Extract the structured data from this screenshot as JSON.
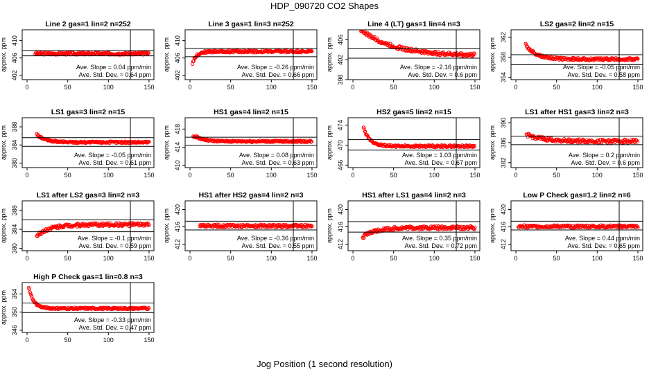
{
  "figure": {
    "title": "HDP_090720  CO2 Shapes",
    "xlabel": "Jog Position (1 second resolution)"
  },
  "colors": {
    "points": "#ff0000",
    "axes": "#000000"
  },
  "chart_data": [
    {
      "type": "scatter",
      "title": "Line 2 gas=1 lin=2 n=252",
      "ylabel": "approx. ppm",
      "xticks": [
        0,
        50,
        100,
        150
      ],
      "yticks": [
        402,
        406,
        410
      ],
      "ylim": [
        401,
        412.5
      ],
      "xlim": [
        -6,
        156
      ],
      "hlines": [
        407.7,
        406.5
      ],
      "vline": 127,
      "slope_text": "Ave. Slope =  0.04  ppm/min",
      "std_text": "Ave. Std. Dev. =  0.64  ppm",
      "series": [
        {
          "shape": "flat",
          "x_start": 10,
          "x_end": 150,
          "level": 407.0,
          "noise": 0.25
        }
      ]
    },
    {
      "type": "scatter",
      "title": "Line 3 gas=1 lin=3 n=252",
      "ylabel": "approx. ppm",
      "xticks": [
        0,
        50,
        100,
        150
      ],
      "yticks": [
        402,
        406,
        410
      ],
      "ylim": [
        401,
        412.5
      ],
      "xlim": [
        -6,
        156
      ],
      "hlines": [
        408.2,
        406.3
      ],
      "vline": 127,
      "slope_text": "Ave. Slope = -0.26  ppm/min",
      "std_text": "Ave. Std. Dev. =  0.66  ppm",
      "series": [
        {
          "shape": "rise",
          "x_start": 3,
          "x_end": 150,
          "level": 407.5,
          "start": 404.8,
          "tau": 5,
          "noise": 0.25
        }
      ]
    },
    {
      "type": "scatter",
      "title": "Line 4 (LT) gas=1 lin=4 n=3",
      "ylabel": "approx. ppm",
      "xticks": [
        0,
        50,
        100,
        150
      ],
      "yticks": [
        398,
        402,
        406
      ],
      "ylim": [
        398,
        408
      ],
      "xlim": [
        -6,
        156
      ],
      "hlines": [
        404.2,
        402.3
      ],
      "vline": 127,
      "slope_text": "Ave. Slope = -2.16  ppm/min",
      "std_text": "Ave. Std. Dev. =  0.6  ppm",
      "series": [
        {
          "shape": "decay",
          "x_start": 10,
          "x_end": 150,
          "level": 402.8,
          "start": 408,
          "tau": 40,
          "noise": 0.35
        }
      ]
    },
    {
      "type": "scatter",
      "title": "LS2 gas=2 lin=2 n=15",
      "ylabel": "approx. ppm",
      "xticks": [
        0,
        50,
        100,
        150
      ],
      "yticks": [
        354,
        358,
        362
      ],
      "ylim": [
        353.5,
        363.5
      ],
      "xlim": [
        -6,
        156
      ],
      "hlines": [
        358.5,
        356.5
      ],
      "vline": 127,
      "slope_text": "Ave. Slope = -0.05  ppm/min",
      "std_text": "Ave. Std. Dev. =  0.58  ppm",
      "series": [
        {
          "shape": "decay",
          "x_start": 12,
          "x_end": 150,
          "level": 357.6,
          "start": 360.5,
          "tau": 13,
          "noise": 0.25
        }
      ]
    },
    {
      "type": "scatter",
      "title": "LS1 gas=3 lin=2 n=15",
      "ylabel": "approx. ppm",
      "xticks": [
        0,
        50,
        100,
        150
      ],
      "yticks": [
        380,
        384,
        388
      ],
      "ylim": [
        379,
        390
      ],
      "xlim": [
        -6,
        156
      ],
      "hlines": [
        385.6,
        383.7
      ],
      "vline": 127,
      "slope_text": "Ave. Slope = -0.05  ppm/min",
      "std_text": "Ave. Std. Dev. =  0.61  ppm",
      "series": [
        {
          "shape": "decay",
          "x_start": 12,
          "x_end": 150,
          "level": 384.6,
          "start": 386.3,
          "tau": 10,
          "noise": 0.2
        }
      ]
    },
    {
      "type": "scatter",
      "title": "HS1 gas=4 lin=2 n=15",
      "ylabel": "approx. ppm",
      "xticks": [
        0,
        50,
        100,
        150
      ],
      "yticks": [
        410,
        414,
        418
      ],
      "ylim": [
        409.5,
        420.5
      ],
      "xlim": [
        -6,
        156
      ],
      "hlines": [
        416.2,
        414.4
      ],
      "vline": 127,
      "slope_text": "Ave. Slope =  0.08  ppm/min",
      "std_text": "Ave. Std. Dev. =  0.63  ppm",
      "series": [
        {
          "shape": "bump",
          "x_start": 4,
          "x_end": 150,
          "level": 415.3,
          "start": 416.3,
          "tau": 10,
          "noise": 0.2
        }
      ]
    },
    {
      "type": "scatter",
      "title": "HS2 gas=5 lin=2 n=15",
      "ylabel": "approx. ppm",
      "xticks": [
        0,
        50,
        100,
        150
      ],
      "yticks": [
        466,
        470,
        474
      ],
      "ylim": [
        465.5,
        475.5
      ],
      "xlim": [
        -6,
        156
      ],
      "hlines": [
        471.1,
        469.0
      ],
      "vline": 127,
      "slope_text": "Ave. Slope =  1.03  ppm/min",
      "std_text": "Ave. Std. Dev. =  0.67  ppm",
      "series": [
        {
          "shape": "decay",
          "x_start": 13,
          "x_end": 150,
          "level": 469.8,
          "start": 473.5,
          "tau": 8,
          "noise": 0.2
        }
      ]
    },
    {
      "type": "scatter",
      "title": "LS1 after HS1 gas=3 lin=2 n=3",
      "ylabel": "approx. ppm",
      "xticks": [
        0,
        50,
        100,
        150
      ],
      "yticks": [
        382,
        386,
        390
      ],
      "ylim": [
        381,
        391
      ],
      "xlim": [
        -6,
        156
      ],
      "hlines": [
        387.3,
        385.6
      ],
      "vline": 127,
      "slope_text": "Ave. Slope =  0.2  ppm/min",
      "std_text": "Ave. Std. Dev. =  0.6  ppm",
      "series": [
        {
          "shape": "decay",
          "x_start": 13,
          "x_end": 150,
          "level": 386.3,
          "start": 387.6,
          "tau": 20,
          "noise": 0.35
        }
      ]
    },
    {
      "type": "scatter",
      "title": "LS1 after LS2 gas=3 lin=2 n=3",
      "ylabel": "approx. ppm",
      "xticks": [
        0,
        50,
        100,
        150
      ],
      "yticks": [
        380,
        384,
        388
      ],
      "ylim": [
        379.5,
        390
      ],
      "xlim": [
        -6,
        156
      ],
      "hlines": [
        386.0,
        383.5
      ],
      "vline": 127,
      "slope_text": "Ave. Slope = -0.1  ppm/min",
      "std_text": "Ave. Std. Dev. =  0.59  ppm",
      "series": [
        {
          "shape": "rise",
          "x_start": 12,
          "x_end": 150,
          "level": 385.0,
          "start": 382.6,
          "tau": 15,
          "noise": 0.35
        }
      ]
    },
    {
      "type": "scatter",
      "title": "HS1 after HS2 gas=4 lin=2 n=3",
      "ylabel": "approx. ppm",
      "xticks": [
        0,
        50,
        100,
        150
      ],
      "yticks": [
        412,
        416,
        420
      ],
      "ylim": [
        410.5,
        422
      ],
      "xlim": [
        -6,
        156
      ],
      "hlines": [
        417.3,
        415.3
      ],
      "vline": 127,
      "slope_text": "Ave. Slope = -0.36  ppm/min",
      "std_text": "Ave. Std. Dev. =  0.55  ppm",
      "series": [
        {
          "shape": "flat",
          "x_start": 12,
          "x_end": 150,
          "level": 416.2,
          "noise": 0.35
        }
      ]
    },
    {
      "type": "scatter",
      "title": "HS1 after LS1 gas=4 lin=2 n=3",
      "ylabel": "approx. ppm",
      "xticks": [
        0,
        50,
        100,
        150
      ],
      "yticks": [
        412,
        416,
        420
      ],
      "ylim": [
        410.5,
        422
      ],
      "xlim": [
        -6,
        156
      ],
      "hlines": [
        417.2,
        414.8
      ],
      "vline": 127,
      "slope_text": "Ave. Slope =  0.35  ppm/min",
      "std_text": "Ave. Std. Dev. =  0.72  ppm",
      "series": [
        {
          "shape": "rise",
          "x_start": 12,
          "x_end": 150,
          "level": 415.8,
          "start": 413.6,
          "tau": 15,
          "noise": 0.4
        }
      ]
    },
    {
      "type": "scatter",
      "title": "Low P Check gas=1.2 lin=2 n=6",
      "ylabel": "approx. ppm",
      "xticks": [
        0,
        50,
        100,
        150
      ],
      "yticks": [
        412,
        416,
        420
      ],
      "ylim": [
        410.5,
        422
      ],
      "xlim": [
        -6,
        156
      ],
      "hlines": [
        417.3,
        415.3
      ],
      "vline": 127,
      "slope_text": "Ave. Slope =  0.44  ppm/min",
      "std_text": "Ave. Std. Dev. =  0.65  ppm",
      "series": [
        {
          "shape": "flat",
          "x_start": 3,
          "x_end": 150,
          "level": 416.1,
          "noise": 0.3
        }
      ]
    },
    {
      "type": "scatter",
      "title": "High P Check gas=1 lin=0.8 n=3",
      "ylabel": "approx. ppm",
      "xticks": [
        0,
        50,
        100,
        150
      ],
      "yticks": [
        346,
        350,
        354
      ],
      "ylim": [
        345.5,
        356.5
      ],
      "xlim": [
        -6,
        156
      ],
      "hlines": [
        352.0,
        349.9
      ],
      "vline": 127,
      "slope_text": "Ave. Slope = -0.33  ppm/min",
      "std_text": "Ave. Std. Dev. =  0.47  ppm",
      "series": [
        {
          "shape": "decay",
          "x_start": 2,
          "x_end": 150,
          "level": 350.8,
          "start": 355.5,
          "tau": 6,
          "noise": 0.2
        }
      ]
    }
  ]
}
